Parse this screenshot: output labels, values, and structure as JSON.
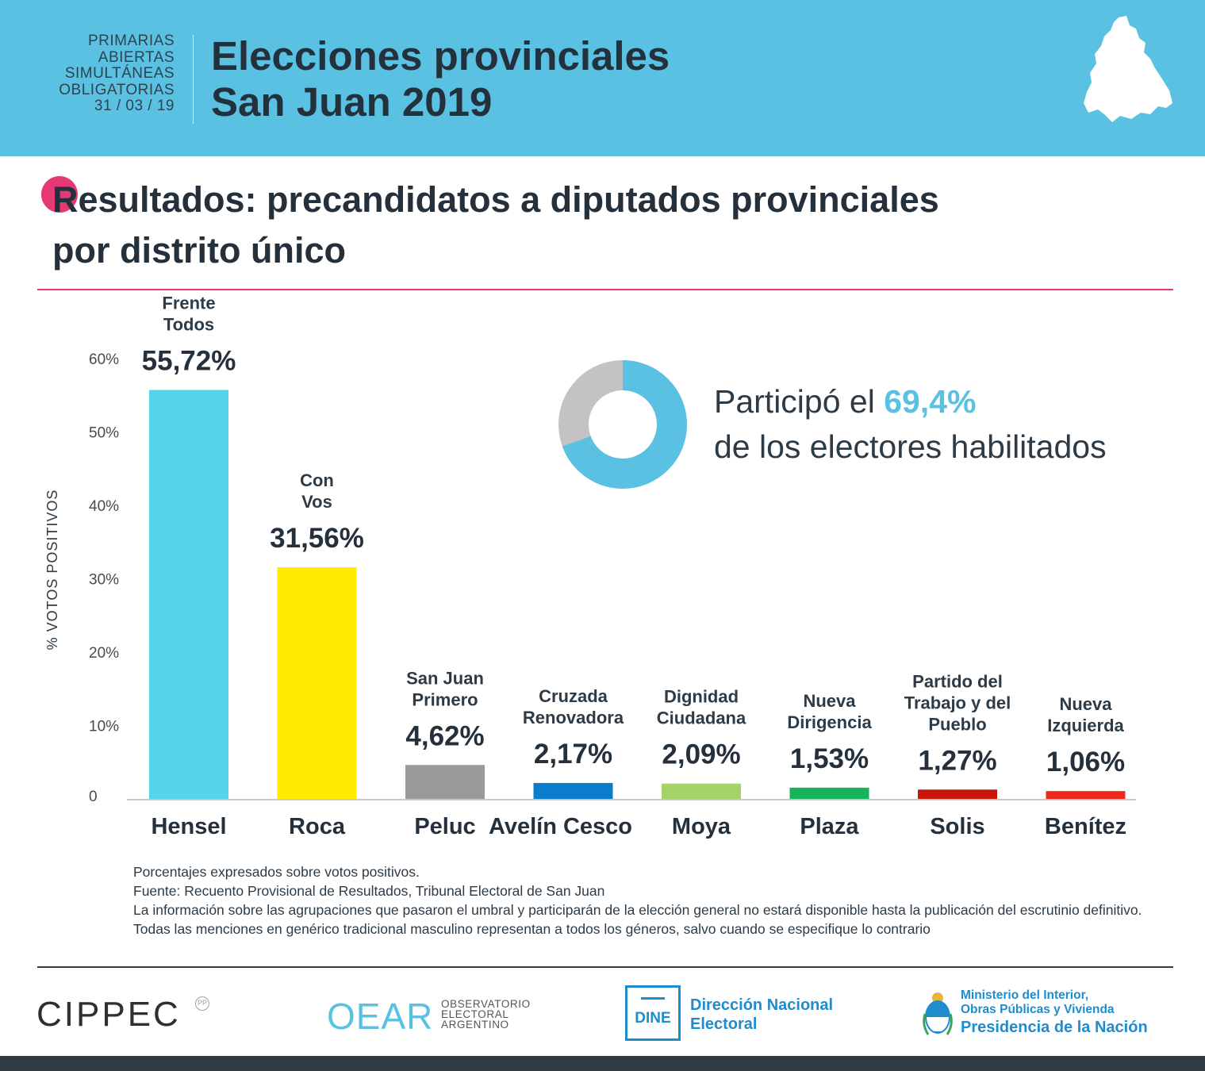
{
  "header": {
    "paso_lines": [
      "PRIMARIAS",
      "ABIERTAS",
      "SIMULTÁNEAS",
      "OBLIGATORIAS",
      "31 / 03 / 19"
    ],
    "title_line1": "Elecciones provinciales",
    "title_line2": "San Juan 2019",
    "map_icon": "san-juan-province-map"
  },
  "section": {
    "title_line1": "Resultados: precandidatos a diputados provinciales",
    "title_line2": "por distrito único"
  },
  "chart_data": {
    "type": "bar",
    "title": "Resultados: precandidatos a diputados provinciales por distrito único",
    "ylabel": "% VOTOS POSITIVOS",
    "xlabel": "",
    "ylim": [
      0,
      60
    ],
    "yticks": [
      0,
      10,
      20,
      30,
      40,
      50,
      60
    ],
    "ytick_labels": [
      "0",
      "10%",
      "20%",
      "30%",
      "40%",
      "50%",
      "60%"
    ],
    "categories": [
      "Hensel",
      "Roca",
      "Peluc",
      "Avelín Cesco",
      "Moya",
      "Plaza",
      "Solis",
      "Benítez"
    ],
    "parties": [
      [
        "Frente",
        "Todos"
      ],
      [
        "Con",
        "Vos"
      ],
      [
        "San Juan",
        "Primero"
      ],
      [
        "Cruzada",
        "Renovadora"
      ],
      [
        "Dignidad",
        "Ciudadana"
      ],
      [
        "Nueva",
        "Dirigencia"
      ],
      [
        "Partido del",
        "Trabajo y del",
        "Pueblo"
      ],
      [
        "Nueva",
        "Izquierda"
      ]
    ],
    "values": [
      55.72,
      31.56,
      4.62,
      2.17,
      2.09,
      1.53,
      1.27,
      1.06
    ],
    "value_labels": [
      "55,72%",
      "31,56%",
      "4,62%",
      "2,17%",
      "2,09%",
      "1,53%",
      "1,27%",
      "1,06%"
    ],
    "colors": [
      "#55d3ea",
      "#ffea00",
      "#9a9a9a",
      "#0a7ccb",
      "#a6d26a",
      "#17b25a",
      "#c8160a",
      "#f0281c"
    ],
    "grid": false,
    "legend": "none"
  },
  "participation": {
    "prefix": "Participó el ",
    "pct": "69,4%",
    "line2": "de los electores habilitados",
    "value": 69.4,
    "colors": {
      "participated": "#5bc1e3",
      "rest": "#c4c2c4"
    }
  },
  "notes": [
    "Porcentajes expresados sobre votos positivos.",
    "Fuente: Recuento Provisional de Resultados, Tribunal Electoral de San Juan",
    "La información sobre las agrupaciones que pasaron el umbral y participarán de la elección general no estará disponible hasta la publicación del escrutinio definitivo.",
    "Todas las menciones en genérico tradicional masculino representan a todos los géneros, salvo cuando se especifique lo contrario"
  ],
  "footer": {
    "cippec": "CIPPEC",
    "cippec_mark": "PP",
    "oear_mark": "OEAR",
    "oear_lines": [
      "OBSERVATORIO",
      "ELECTORAL",
      "ARGENTINO"
    ],
    "dine_box": "DINE",
    "dine_lines": [
      "Dirección Nacional",
      "Electoral"
    ],
    "ministry_lines": [
      "Ministerio del Interior,",
      "Obras Públicas y Vivienda",
      "Presidencia de la Nación"
    ]
  },
  "colors": {
    "header_bg": "#5bc1e3",
    "accent_pink": "#e63873",
    "text_dark": "#24313d",
    "footer_blue": "#1e8ccd"
  }
}
